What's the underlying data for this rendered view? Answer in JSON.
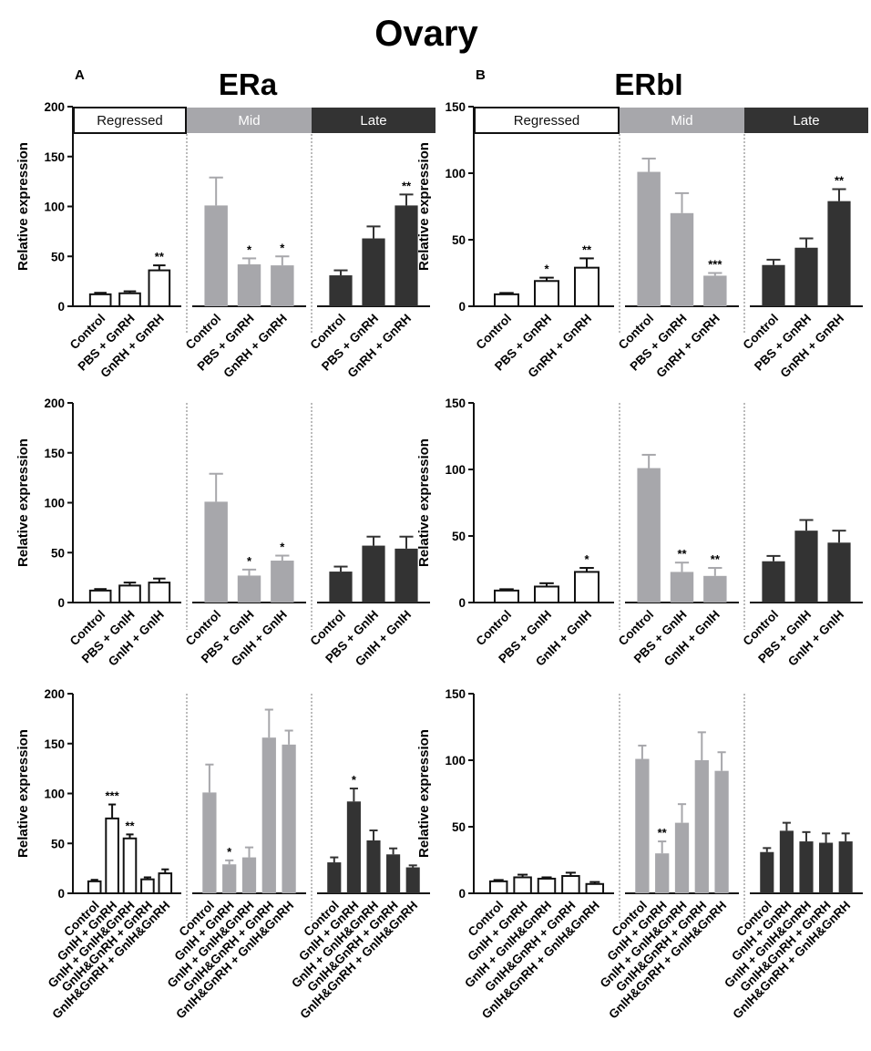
{
  "figure": {
    "title": "Ovary",
    "columns": [
      {
        "letter": "A",
        "title": "ERa"
      },
      {
        "letter": "B",
        "title": "ERbI"
      }
    ],
    "stages": [
      "Regressed",
      "Mid",
      "Late"
    ]
  },
  "colors": {
    "regressed_fill": "#ffffff",
    "mid_fill": "#a7a7ab",
    "late_fill": "#333333",
    "axis": "#111111"
  },
  "chart_data": [
    {
      "id": "era-gnrh",
      "type": "bar",
      "ylabel": "Relative expression",
      "ylim": [
        0,
        200
      ],
      "yticks": [
        0,
        50,
        100,
        150,
        200
      ],
      "show_stage_header": true,
      "groups": [
        {
          "stage": "Regressed",
          "categories": [
            "Control",
            "PBS + GnRH",
            "GnRH + GnRH"
          ],
          "values": [
            12,
            13,
            36
          ],
          "errors": [
            1.5,
            2,
            5
          ],
          "sig": [
            "",
            "",
            "**"
          ]
        },
        {
          "stage": "Mid",
          "categories": [
            "Control",
            "PBS + GnRH",
            "GnRH + GnRH"
          ],
          "values": [
            101,
            42,
            41
          ],
          "errors": [
            28,
            6,
            9
          ],
          "sig": [
            "",
            "*",
            "*"
          ]
        },
        {
          "stage": "Late",
          "categories": [
            "Control",
            "PBS + GnRH",
            "GnRH + GnRH"
          ],
          "values": [
            31,
            68,
            101
          ],
          "errors": [
            5,
            12,
            11
          ],
          "sig": [
            "",
            "",
            "**"
          ]
        }
      ]
    },
    {
      "id": "erbi-gnrh",
      "type": "bar",
      "ylabel": "Relative expression",
      "ylim": [
        0,
        150
      ],
      "yticks": [
        0,
        50,
        100,
        150
      ],
      "show_stage_header": true,
      "groups": [
        {
          "stage": "Regressed",
          "categories": [
            "Control",
            "PBS + GnRH",
            "GnRH + GnRH"
          ],
          "values": [
            9,
            19,
            29
          ],
          "errors": [
            1,
            2.5,
            7
          ],
          "sig": [
            "",
            "*",
            "**"
          ]
        },
        {
          "stage": "Mid",
          "categories": [
            "Control",
            "PBS + GnRH",
            "GnRH + GnRH"
          ],
          "values": [
            101,
            70,
            23
          ],
          "errors": [
            10,
            15,
            2
          ],
          "sig": [
            "",
            "",
            "***"
          ]
        },
        {
          "stage": "Late",
          "categories": [
            "Control",
            "PBS + GnRH",
            "GnRH + GnRH"
          ],
          "values": [
            31,
            44,
            79
          ],
          "errors": [
            4,
            7,
            9
          ],
          "sig": [
            "",
            "",
            "**"
          ]
        }
      ]
    },
    {
      "id": "era-gnih",
      "type": "bar",
      "ylabel": "Relative expression",
      "ylim": [
        0,
        200
      ],
      "yticks": [
        0,
        50,
        100,
        150,
        200
      ],
      "show_stage_header": false,
      "groups": [
        {
          "stage": "Regressed",
          "categories": [
            "Control",
            "PBS + GnIH",
            "GnIH + GnIH"
          ],
          "values": [
            12,
            17,
            20
          ],
          "errors": [
            1.5,
            3,
            4
          ],
          "sig": [
            "",
            "",
            ""
          ]
        },
        {
          "stage": "Mid",
          "categories": [
            "Control",
            "PBS + GnIH",
            "GnIH + GnIH"
          ],
          "values": [
            101,
            27,
            42
          ],
          "errors": [
            28,
            6,
            5
          ],
          "sig": [
            "",
            "*",
            "*"
          ]
        },
        {
          "stage": "Late",
          "categories": [
            "Control",
            "PBS + GnIH",
            "GnIH + GnIH"
          ],
          "values": [
            31,
            57,
            54
          ],
          "errors": [
            5,
            9,
            12
          ],
          "sig": [
            "",
            "",
            ""
          ]
        }
      ]
    },
    {
      "id": "erbi-gnih",
      "type": "bar",
      "ylabel": "Relative expression",
      "ylim": [
        0,
        150
      ],
      "yticks": [
        0,
        50,
        100,
        150
      ],
      "show_stage_header": false,
      "groups": [
        {
          "stage": "Regressed",
          "categories": [
            "Control",
            "PBS + GnIH",
            "GnIH + GnIH"
          ],
          "values": [
            9,
            12,
            23
          ],
          "errors": [
            1,
            2.5,
            3
          ],
          "sig": [
            "",
            "",
            "*"
          ]
        },
        {
          "stage": "Mid",
          "categories": [
            "Control",
            "PBS + GnIH",
            "GnIH + GnIH"
          ],
          "values": [
            101,
            23,
            20
          ],
          "errors": [
            10,
            7,
            6
          ],
          "sig": [
            "",
            "**",
            "**"
          ]
        },
        {
          "stage": "Late",
          "categories": [
            "Control",
            "PBS + GnIH",
            "GnIH + GnIH"
          ],
          "values": [
            31,
            54,
            45
          ],
          "errors": [
            4,
            8,
            9
          ],
          "sig": [
            "",
            "",
            ""
          ]
        }
      ]
    },
    {
      "id": "era-combo",
      "type": "bar",
      "ylabel": "Relative expression",
      "ylim": [
        0,
        200
      ],
      "yticks": [
        0,
        50,
        100,
        150,
        200
      ],
      "show_stage_header": false,
      "groups": [
        {
          "stage": "Regressed",
          "categories": [
            "Control",
            "GnIH + GnRH",
            "GnIH + GnIH&GnRH",
            "GnIH&GnRH + GnRH",
            "GnIH&GnRH + GnIH&GnRH"
          ],
          "values": [
            12,
            75,
            55,
            14,
            20
          ],
          "errors": [
            1.5,
            14,
            4,
            2,
            4
          ],
          "sig": [
            "",
            "***",
            "**",
            "",
            ""
          ]
        },
        {
          "stage": "Mid",
          "categories": [
            "Control",
            "GnIH + GnRH",
            "GnIH + GnIH&GnRH",
            "GnIH&GnRH + GnRH",
            "GnIH&GnRH + GnIH&GnRH"
          ],
          "values": [
            101,
            29,
            36,
            156,
            149
          ],
          "errors": [
            28,
            4,
            10,
            28,
            14
          ],
          "sig": [
            "",
            "*",
            "",
            "",
            ""
          ]
        },
        {
          "stage": "Late",
          "categories": [
            "Control",
            "GnIH + GnRH",
            "GnIH + GnIH&GnRH",
            "GnIH&GnRH + GnRH",
            "GnIH&GnRH + GnIH&GnRH"
          ],
          "values": [
            31,
            92,
            53,
            39,
            26
          ],
          "errors": [
            5,
            13,
            10,
            6,
            2
          ],
          "sig": [
            "",
            "*",
            "",
            "",
            ""
          ]
        }
      ]
    },
    {
      "id": "erbi-combo",
      "type": "bar",
      "ylabel": "Relative expression",
      "ylim": [
        0,
        150
      ],
      "yticks": [
        0,
        50,
        100,
        150
      ],
      "show_stage_header": false,
      "groups": [
        {
          "stage": "Regressed",
          "categories": [
            "Control",
            "GnIH + GnRH",
            "GnIH + GnIH&GnRH",
            "GnIH&GnRH + GnRH",
            "GnIH&GnRH + GnIH&GnRH"
          ],
          "values": [
            9,
            12,
            11,
            13,
            7
          ],
          "errors": [
            1,
            2,
            1,
            2.5,
            1.5
          ],
          "sig": [
            "",
            "",
            "",
            "",
            ""
          ]
        },
        {
          "stage": "Mid",
          "categories": [
            "Control",
            "GnIH + GnRH",
            "GnIH + GnIH&GnRH",
            "GnIH&GnRH + GnRH",
            "GnIH&GnRH + GnIH&GnRH"
          ],
          "values": [
            101,
            30,
            53,
            100,
            92
          ],
          "errors": [
            10,
            9,
            14,
            21,
            14
          ],
          "sig": [
            "",
            "**",
            "",
            "",
            ""
          ]
        },
        {
          "stage": "Late",
          "categories": [
            "Control",
            "GnIH + GnRH",
            "GnIH + GnIH&GnRH",
            "GnIH&GnRH + GnRH",
            "GnIH&GnRH + GnIH&GnRH"
          ],
          "values": [
            31,
            47,
            39,
            38,
            39
          ],
          "errors": [
            3,
            6,
            7,
            7,
            6
          ],
          "sig": [
            "",
            "",
            "",
            "",
            ""
          ]
        }
      ]
    }
  ]
}
